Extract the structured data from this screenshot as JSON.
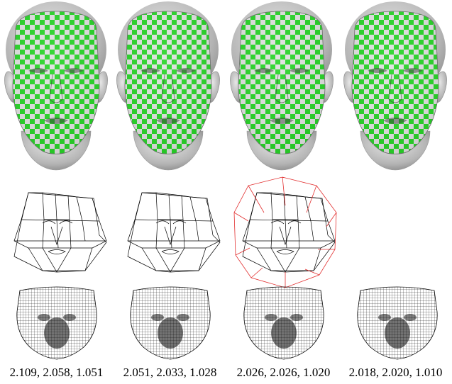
{
  "figure": {
    "columns": [
      {
        "caption": "2.109, 2.058, 1.051",
        "has_control_mesh": true,
        "control_mesh_highlighted": false
      },
      {
        "caption": "2.051, 2.033, 1.028",
        "has_control_mesh": true,
        "control_mesh_highlighted": false
      },
      {
        "caption": "2.026, 2.026, 1.020",
        "has_control_mesh": true,
        "control_mesh_highlighted": true
      },
      {
        "caption": "2.018, 2.020, 1.010",
        "has_control_mesh": false,
        "control_mesh_highlighted": false
      }
    ],
    "rows": [
      "checkerboard-textured-head",
      "control-mesh-wireframe",
      "dense-parameterization-mesh"
    ],
    "colors": {
      "head_gray": "#c9c9c9",
      "checker_green": "#00d400",
      "checker_light": "#e2e2e2",
      "mesh_line": "#000000",
      "highlight_line": "#e23030"
    }
  }
}
